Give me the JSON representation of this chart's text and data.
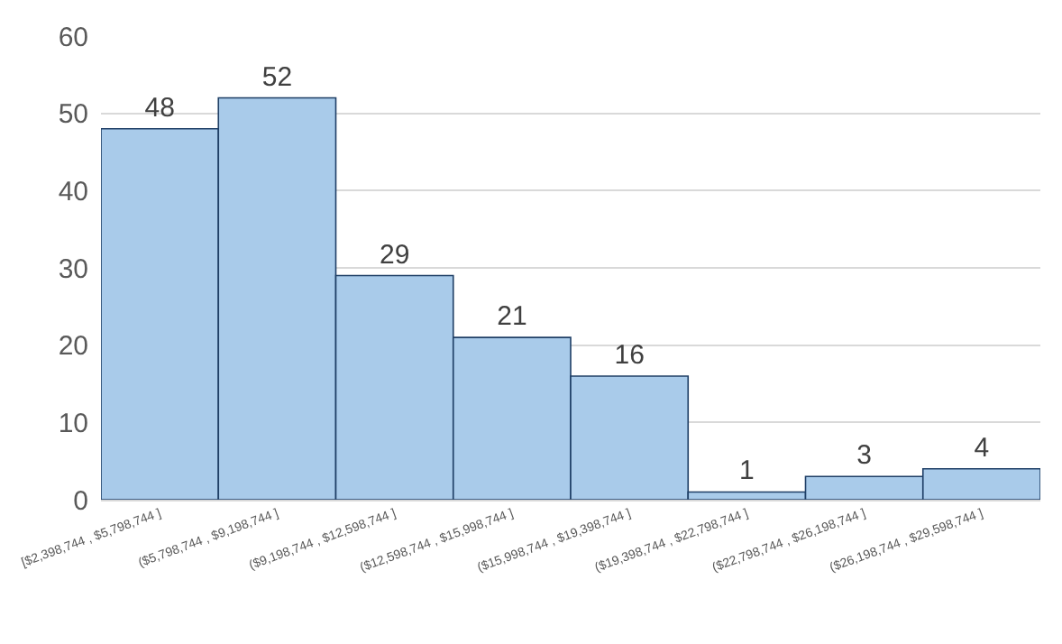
{
  "chart_data": {
    "type": "bar",
    "categories": [
      "[$2,398,744 , $5,798,744 ]",
      "($5,798,744 , $9,198,744 ]",
      "($9,198,744 , $12,598,744 ]",
      "($12,598,744 , $15,998,744 ]",
      "($15,998,744 , $19,398,744 ]",
      "($19,398,744 , $22,798,744 ]",
      "($22,798,744 , $26,198,744 ]",
      "($26,198,744 , $29,598,744 ]"
    ],
    "values": [
      48,
      52,
      29,
      21,
      16,
      1,
      3,
      4
    ],
    "color": "#a9cbea",
    "ylim": [
      0,
      60
    ],
    "yticks": [
      0,
      10,
      20,
      30,
      40,
      50,
      60
    ],
    "grid": "y",
    "data_labels": true
  }
}
